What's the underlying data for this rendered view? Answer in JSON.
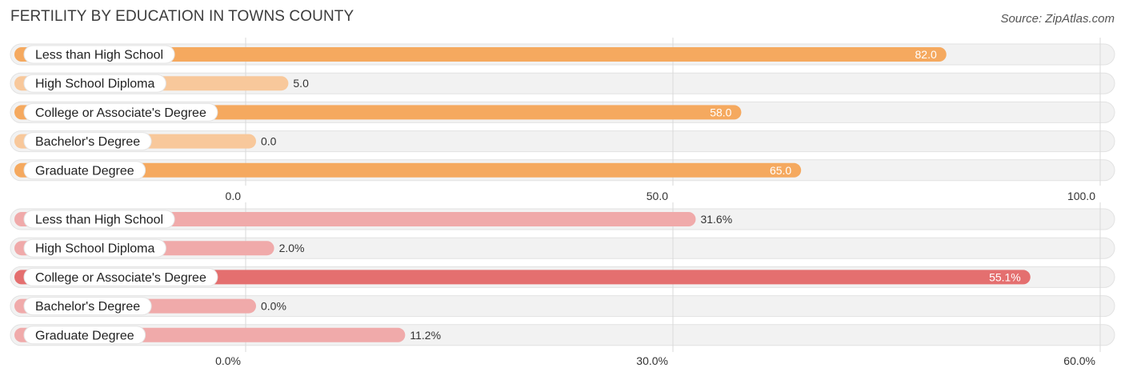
{
  "title": "FERTILITY BY EDUCATION IN TOWNS COUNTY",
  "source": "Source: ZipAtlas.com",
  "chart_data": [
    {
      "type": "bar",
      "orientation": "horizontal",
      "categories": [
        "Less than High School",
        "High School Diploma",
        "College or Associate's Degree",
        "Bachelor's Degree",
        "Graduate Degree"
      ],
      "values": [
        82.0,
        5.0,
        58.0,
        0.0,
        65.0
      ],
      "value_labels": [
        "82.0",
        "5.0",
        "58.0",
        "0.0",
        "65.0"
      ],
      "xlim": [
        0,
        100
      ],
      "ticks": [
        0,
        50,
        100
      ],
      "tick_labels": [
        "0.0",
        "50.0",
        "100.0"
      ],
      "bar_color": "#f5a95f",
      "bar_color_light": "#f8c89b",
      "grid": true
    },
    {
      "type": "bar",
      "orientation": "horizontal",
      "categories": [
        "Less than High School",
        "High School Diploma",
        "College or Associate's Degree",
        "Bachelor's Degree",
        "Graduate Degree"
      ],
      "values": [
        31.6,
        2.0,
        55.1,
        0.0,
        11.2
      ],
      "value_labels": [
        "31.6%",
        "2.0%",
        "55.1%",
        "0.0%",
        "11.2%"
      ],
      "xlim": [
        0,
        60
      ],
      "ticks": [
        0,
        30,
        60
      ],
      "tick_labels": [
        "0.0%",
        "30.0%",
        "60.0%"
      ],
      "bar_color": "#e46f6f",
      "bar_color_light": "#f0aaaa",
      "grid": true
    }
  ]
}
